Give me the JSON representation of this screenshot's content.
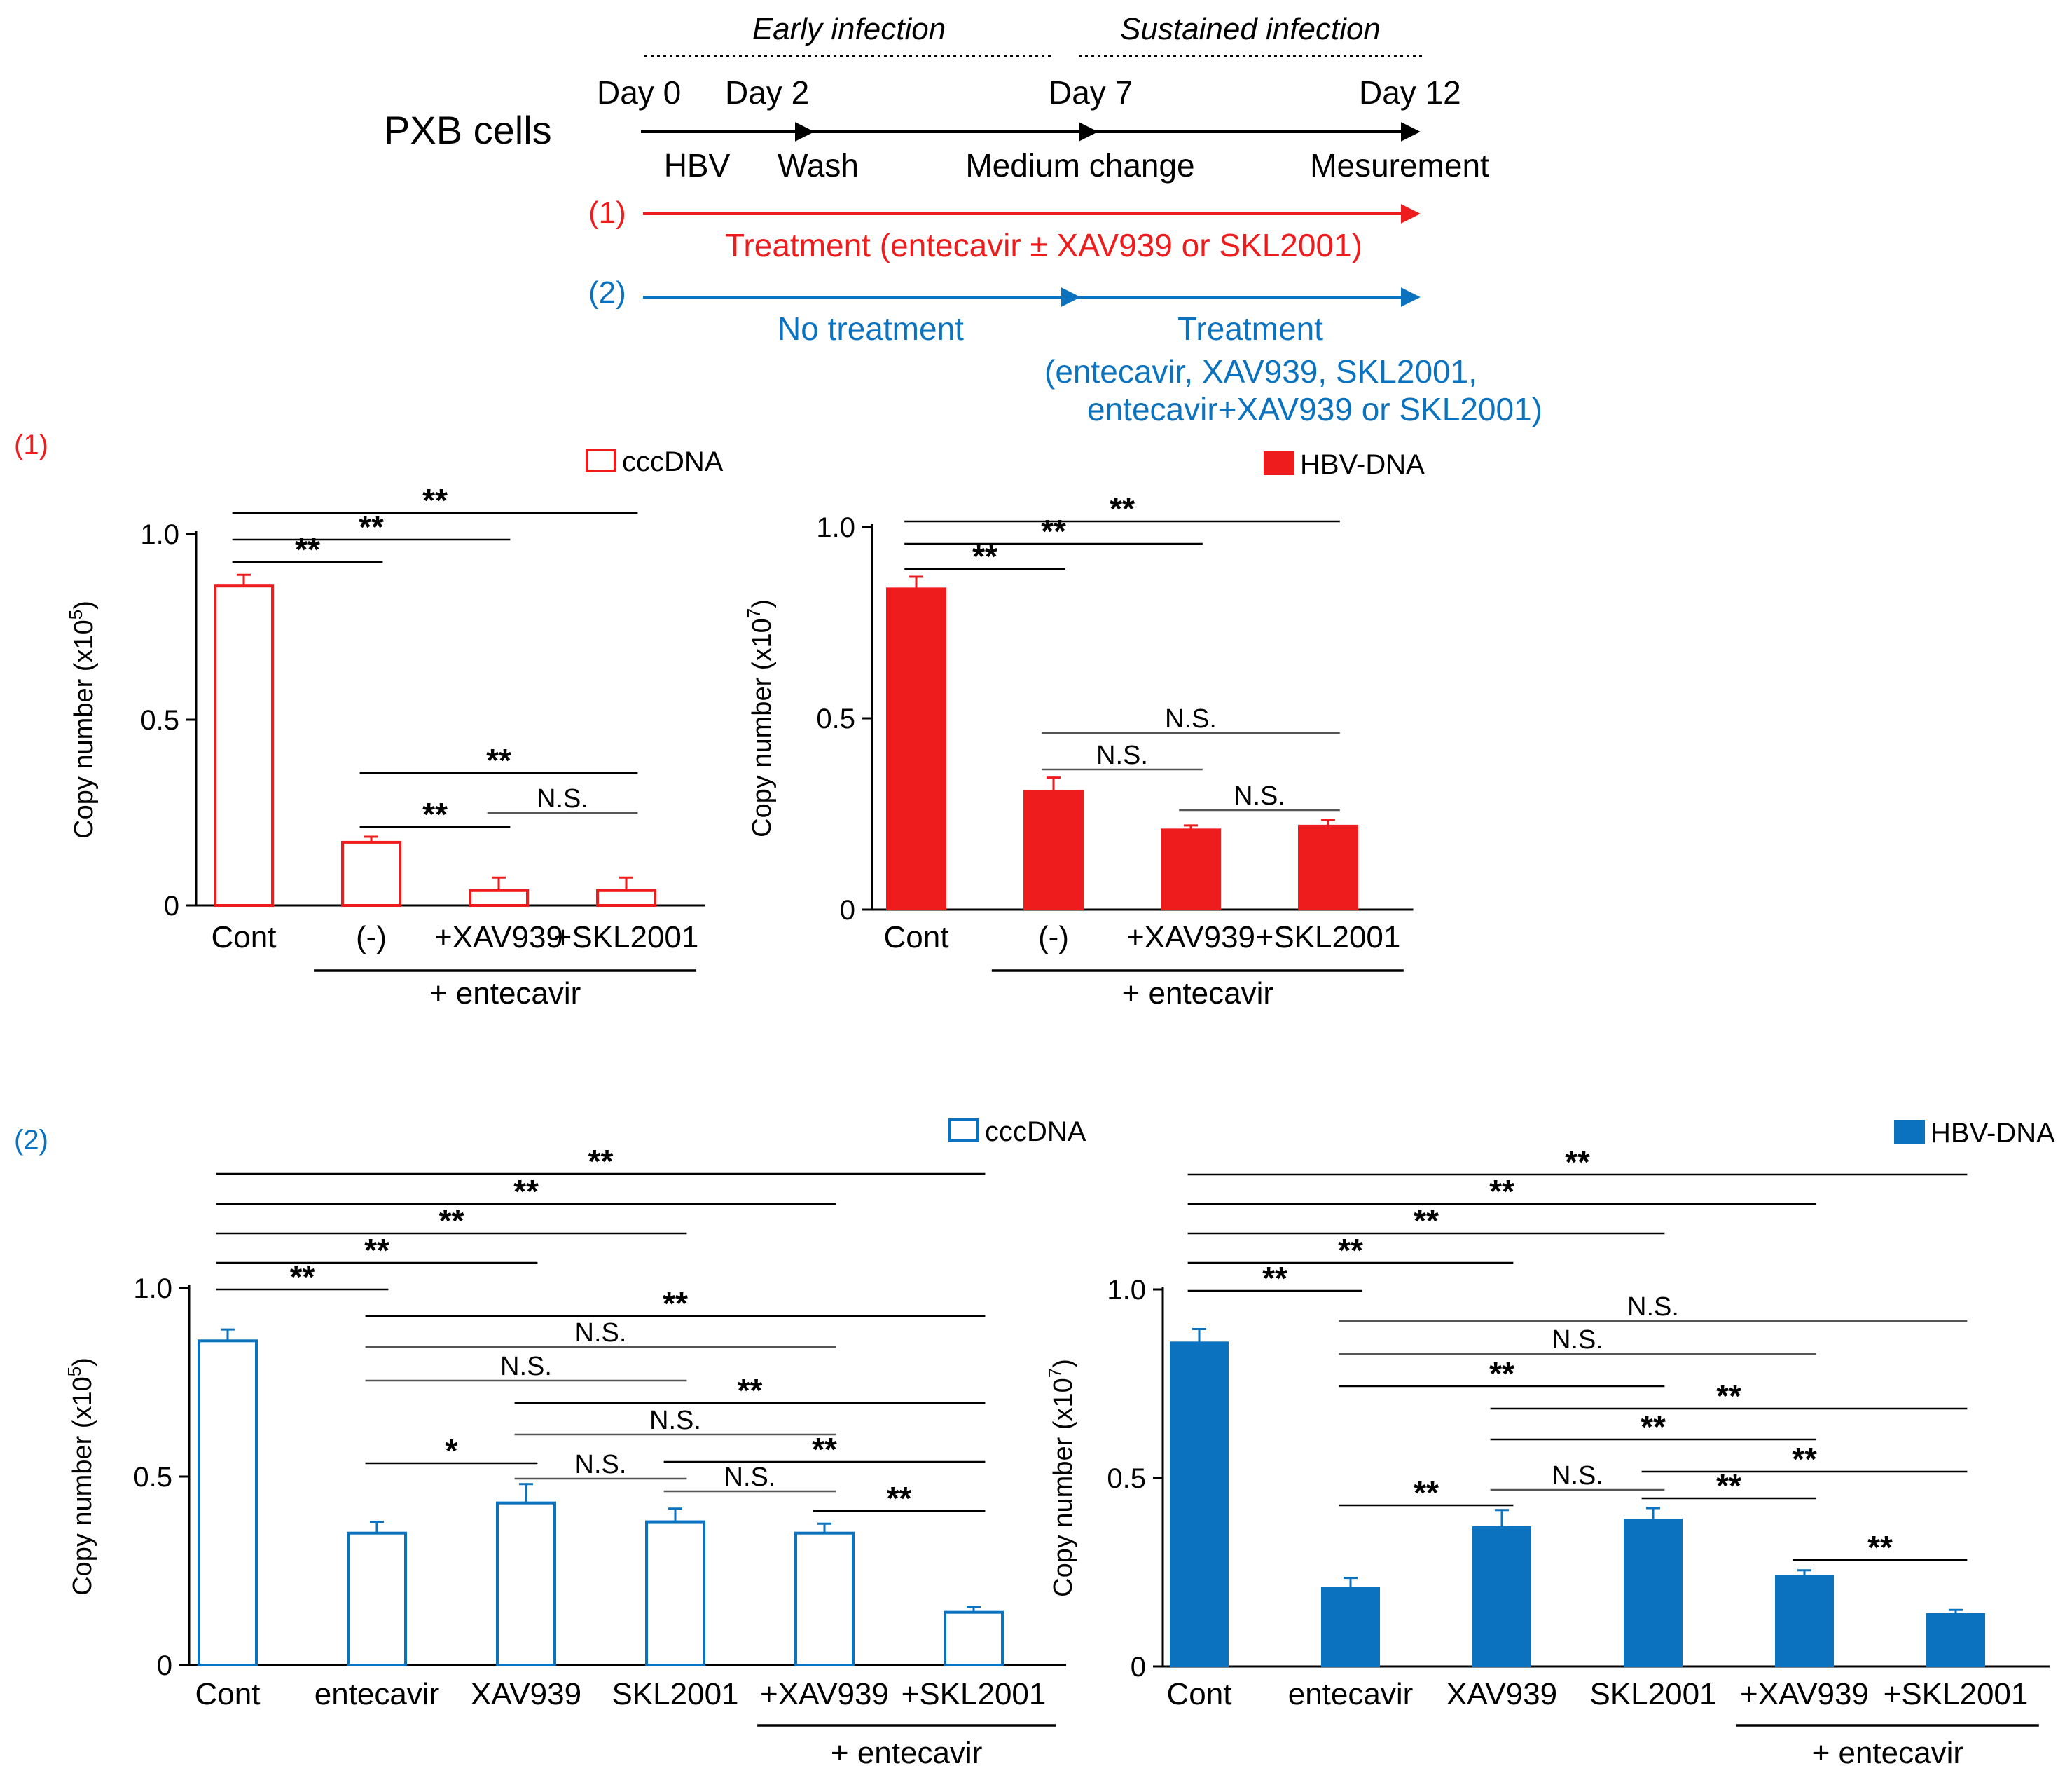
{
  "colors": {
    "red": "#ee1c1c",
    "blue": "#0a72be",
    "black": "#000000",
    "gray": "#6b6b6b"
  },
  "schema": {
    "cells_label": "PXB cells",
    "early_label": "Early infection",
    "sustained_label": "Sustained infection",
    "days": [
      "Day 0",
      "Day 2",
      "Day 7",
      "Day 12"
    ],
    "events": [
      "HBV",
      "Wash",
      "Medium change",
      "Mesurement"
    ],
    "protocol1_label": "(1)",
    "protocol1_treatment": "Treatment (entecavir ± XAV939 or SKL2001)",
    "protocol2_label": "(2)",
    "protocol2_no_treatment": "No treatment",
    "protocol2_treatment_title": "Treatment",
    "protocol2_treatment_line1": "(entecavir, XAV939, SKL2001,",
    "protocol2_treatment_line2": "entecavir+XAV939 or SKL2001)"
  },
  "panel_labels": {
    "p1": "(1)",
    "p2": "(2)"
  },
  "entecavir_label": "+ entecavir",
  "chart_data": [
    {
      "id": "p1_ccc",
      "type": "bar",
      "protocol": "(1)",
      "legend": "cccDNA",
      "fill": "open",
      "color": "#ee1c1c",
      "ylabel_main": "Copy number (x10",
      "ylabel_exp": "5",
      "ylabel_close": ")",
      "ylim": [
        0,
        1.0
      ],
      "yticks": [
        "0",
        "0.5",
        "1.0"
      ],
      "categories": [
        "Cont",
        "(-)",
        "+XAV939",
        "+SKL2001"
      ],
      "values": [
        0.86,
        0.17,
        0.04,
        0.04
      ],
      "errors": [
        0.03,
        0.015,
        0.035,
        0.035
      ],
      "entecavir_bracket": [
        1,
        3
      ],
      "significance": [
        {
          "from": 0,
          "to": 1,
          "label": "**"
        },
        {
          "from": 0,
          "to": 2,
          "label": "**"
        },
        {
          "from": 0,
          "to": 3,
          "label": "**"
        },
        {
          "from": 1,
          "to": 3,
          "label": "**"
        },
        {
          "from": 1,
          "to": 2,
          "label": "**"
        },
        {
          "from": 2,
          "to": 3,
          "label": "N.S."
        }
      ]
    },
    {
      "id": "p1_hbv",
      "type": "bar",
      "protocol": "(1)",
      "legend": "HBV-DNA",
      "fill": "solid",
      "color": "#ee1c1c",
      "ylabel_main": "Copy number (x10",
      "ylabel_exp": "7",
      "ylabel_close": ")",
      "ylim": [
        0,
        1.0
      ],
      "yticks": [
        "0",
        "0.5",
        "1.0"
      ],
      "categories": [
        "Cont",
        "(-)",
        "+XAV939",
        "+SKL2001"
      ],
      "values": [
        0.84,
        0.31,
        0.21,
        0.22
      ],
      "errors": [
        0.03,
        0.035,
        0.01,
        0.015
      ],
      "entecavir_bracket": [
        1,
        3
      ],
      "significance": [
        {
          "from": 0,
          "to": 1,
          "label": "**"
        },
        {
          "from": 0,
          "to": 2,
          "label": "**"
        },
        {
          "from": 0,
          "to": 3,
          "label": "**"
        },
        {
          "from": 1,
          "to": 3,
          "label": "N.S."
        },
        {
          "from": 1,
          "to": 2,
          "label": "N.S."
        },
        {
          "from": 2,
          "to": 3,
          "label": "N.S."
        }
      ]
    },
    {
      "id": "p2_ccc",
      "type": "bar",
      "protocol": "(2)",
      "legend": "cccDNA",
      "fill": "open",
      "color": "#0a72be",
      "ylabel_main": "Copy number (x10",
      "ylabel_exp": "5",
      "ylabel_close": ")",
      "ylim": [
        0,
        1.0
      ],
      "yticks": [
        "0",
        "0.5",
        "1.0"
      ],
      "categories": [
        "Cont",
        "entecavir",
        "XAV939",
        "SKL2001",
        "+XAV939",
        "+SKL2001"
      ],
      "values": [
        0.86,
        0.35,
        0.43,
        0.38,
        0.35,
        0.14
      ],
      "errors": [
        0.03,
        0.03,
        0.05,
        0.035,
        0.025,
        0.015
      ],
      "entecavir_bracket": [
        4,
        5
      ],
      "significance": [
        {
          "from": 0,
          "to": 5,
          "label": "**"
        },
        {
          "from": 0,
          "to": 4,
          "label": "**"
        },
        {
          "from": 0,
          "to": 3,
          "label": "**"
        },
        {
          "from": 0,
          "to": 2,
          "label": "**"
        },
        {
          "from": 0,
          "to": 1,
          "label": "**"
        },
        {
          "from": 1,
          "to": 5,
          "label": "**"
        },
        {
          "from": 1,
          "to": 4,
          "label": "N.S."
        },
        {
          "from": 1,
          "to": 3,
          "label": "N.S."
        },
        {
          "from": 2,
          "to": 5,
          "label": "**"
        },
        {
          "from": 2,
          "to": 4,
          "label": "N.S."
        },
        {
          "from": 3,
          "to": 5,
          "label": "**"
        },
        {
          "from": 1,
          "to": 2,
          "label": "*"
        },
        {
          "from": 2,
          "to": 3,
          "label": "N.S."
        },
        {
          "from": 3,
          "to": 4,
          "label": "N.S."
        },
        {
          "from": 4,
          "to": 5,
          "label": "**"
        }
      ]
    },
    {
      "id": "p2_hbv",
      "type": "bar",
      "protocol": "(2)",
      "legend": "HBV-DNA",
      "fill": "solid",
      "color": "#0a72be",
      "ylabel_main": "Copy number (x10",
      "ylabel_exp": "7",
      "ylabel_close": ")",
      "ylim": [
        0,
        1.0
      ],
      "yticks": [
        "0",
        "0.5",
        "1.0"
      ],
      "categories": [
        "Cont",
        "entecavir",
        "XAV939",
        "SKL2001",
        "+XAV939",
        "+SKL2001"
      ],
      "values": [
        0.86,
        0.21,
        0.37,
        0.39,
        0.24,
        0.14
      ],
      "errors": [
        0.035,
        0.025,
        0.045,
        0.03,
        0.015,
        0.01
      ],
      "entecavir_bracket": [
        4,
        5
      ],
      "significance": [
        {
          "from": 0,
          "to": 5,
          "label": "**"
        },
        {
          "from": 0,
          "to": 4,
          "label": "**"
        },
        {
          "from": 0,
          "to": 3,
          "label": "**"
        },
        {
          "from": 0,
          "to": 2,
          "label": "**"
        },
        {
          "from": 0,
          "to": 1,
          "label": "**"
        },
        {
          "from": 1,
          "to": 5,
          "label": "N.S."
        },
        {
          "from": 1,
          "to": 4,
          "label": "N.S."
        },
        {
          "from": 1,
          "to": 3,
          "label": "**"
        },
        {
          "from": 2,
          "to": 5,
          "label": "**"
        },
        {
          "from": 2,
          "to": 4,
          "label": "**"
        },
        {
          "from": 1,
          "to": 2,
          "label": "**"
        },
        {
          "from": 2,
          "to": 3,
          "label": "N.S."
        },
        {
          "from": 3,
          "to": 5,
          "label": "**"
        },
        {
          "from": 3,
          "to": 4,
          "label": "**"
        },
        {
          "from": 4,
          "to": 5,
          "label": "**"
        }
      ]
    }
  ]
}
